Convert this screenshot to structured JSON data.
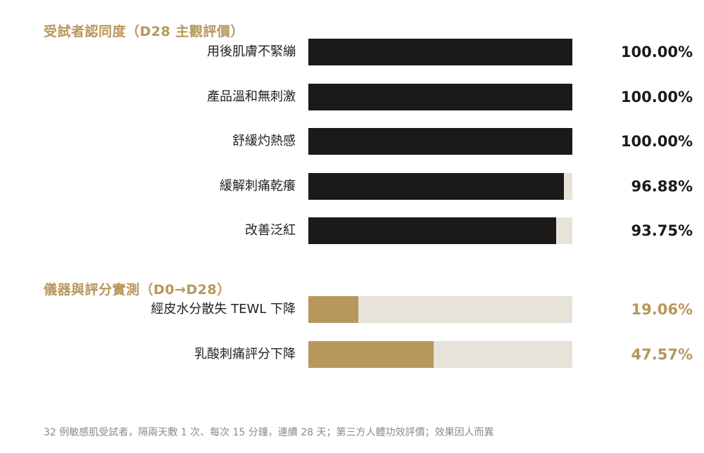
{
  "colors": {
    "accent_gold": "#b8975a",
    "bar_dark": "#1c1a18",
    "track": "#e7e3da",
    "label_text": "#222222",
    "footnote_text": "#8a8a8a"
  },
  "chart_data": [
    {
      "type": "bar",
      "orientation": "horizontal",
      "title": "受試者認同度（D28 主觀評價）",
      "categories": [
        "用後肌膚不緊繃",
        "產品溫和無刺激",
        "舒緩灼熱感",
        "緩解刺痛乾癢",
        "改善泛紅"
      ],
      "values": [
        100.0,
        100.0,
        100.0,
        96.88,
        93.75
      ],
      "value_labels": [
        "100.00%",
        "100.00%",
        "100.00%",
        "96.88%",
        "93.75%"
      ],
      "xlim": [
        0,
        100
      ],
      "bar_color": "#1c1a18",
      "value_color": "#1c1a18",
      "grid": false,
      "legend": "none"
    },
    {
      "type": "bar",
      "orientation": "horizontal",
      "title": "儀器與評分實測（D0→D28）",
      "categories": [
        "經皮水分散失 TEWL 下降",
        "乳酸刺痛評分下降"
      ],
      "values": [
        19.06,
        47.57
      ],
      "value_labels": [
        "19.06%",
        "47.57%"
      ],
      "xlim": [
        0,
        100
      ],
      "bar_color": "#b8975a",
      "value_color": "#b8975a",
      "grid": false,
      "legend": "none"
    }
  ],
  "footnote": "32 例敏感肌受試者，隔兩天敷 1 次、每次 15 分鐘，連續 28 天；第三方人體功效評價；效果因人而異"
}
